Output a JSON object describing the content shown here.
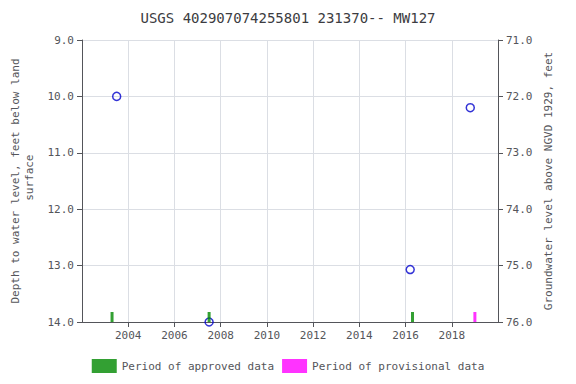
{
  "chart_data": {
    "type": "scatter",
    "title": "USGS 402907074255801 231370-- MW127",
    "ylabel": "Depth to water level, feet below land\n surface",
    "y2label": "Groundwater level above NGVD 1929, feet",
    "xlim": [
      2002,
      2020
    ],
    "xticks": [
      2004,
      2006,
      2008,
      2010,
      2012,
      2014,
      2016,
      2018
    ],
    "ylim": [
      14.0,
      9.0
    ],
    "yticks": [
      {
        "value": 9.0,
        "label": "9.0"
      },
      {
        "value": 10.0,
        "label": "10.0"
      },
      {
        "value": 11.0,
        "label": "11.0"
      },
      {
        "value": 12.0,
        "label": "12.0"
      },
      {
        "value": 13.0,
        "label": "13.0"
      },
      {
        "value": 14.0,
        "label": "14.0"
      }
    ],
    "y2lim": [
      76.0,
      71.0
    ],
    "y2ticks": [
      {
        "value": 76.0,
        "label": "76.0"
      },
      {
        "value": 75.0,
        "label": "75.0"
      },
      {
        "value": 74.0,
        "label": "74.0"
      },
      {
        "value": 73.0,
        "label": "73.0"
      },
      {
        "value": 72.0,
        "label": "72.0"
      },
      {
        "value": 71.0,
        "label": "71.0"
      }
    ],
    "grid": true,
    "legend": "bottom",
    "series": [
      {
        "type": "scatter",
        "marker": "open_circle",
        "color": "#0000cc",
        "x": [
          2003.5,
          2007.5,
          2016.2,
          2018.8
        ],
        "values": [
          10.0,
          14.0,
          13.07,
          10.2
        ]
      },
      {
        "name": "Period of approved data",
        "type": "scatter",
        "marker": "vline",
        "color": "#008800",
        "x": [
          2003.3,
          2007.5,
          2016.3
        ],
        "values": [
          14.0,
          14.0,
          14.0
        ]
      },
      {
        "name": "Period of provisional data",
        "type": "scatter",
        "marker": "vline",
        "color": "#ff00ff",
        "x": [
          2019.0
        ],
        "values": [
          14.0
        ]
      }
    ]
  }
}
